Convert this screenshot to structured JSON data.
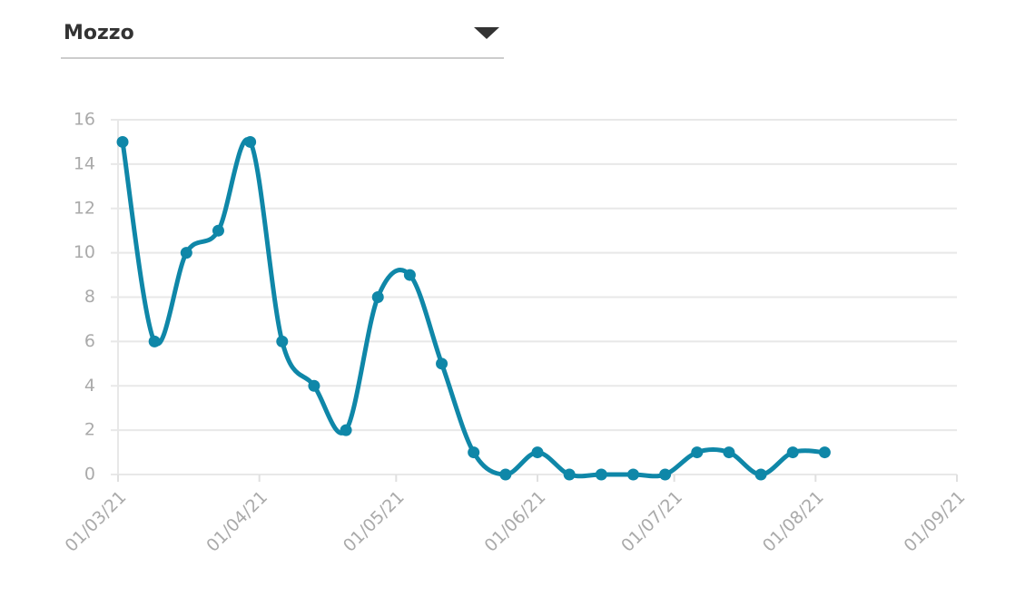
{
  "dropdown": {
    "label": "Mozzo"
  },
  "chart_data": {
    "type": "line",
    "x": [
      "2021-03-02",
      "2021-03-09",
      "2021-03-16",
      "2021-03-23",
      "2021-03-30",
      "2021-04-06",
      "2021-04-13",
      "2021-04-20",
      "2021-04-27",
      "2021-05-04",
      "2021-05-11",
      "2021-05-18",
      "2021-05-25",
      "2021-06-01",
      "2021-06-08",
      "2021-06-15",
      "2021-06-22",
      "2021-06-29",
      "2021-07-06",
      "2021-07-13",
      "2021-07-20",
      "2021-07-27",
      "2021-08-03"
    ],
    "values": [
      15,
      6,
      10,
      11,
      15,
      6,
      4,
      2,
      8,
      9,
      5,
      1,
      0,
      1,
      0,
      0,
      0,
      0,
      1,
      1,
      0,
      1,
      1
    ],
    "color": "#0f87a8",
    "xlim": [
      "2021-03-01",
      "2021-09-01"
    ],
    "xticks": [
      {
        "value": "2021-03-01",
        "label": "01/03/21"
      },
      {
        "value": "2021-04-01",
        "label": "01/04/21"
      },
      {
        "value": "2021-05-01",
        "label": "01/05/21"
      },
      {
        "value": "2021-06-01",
        "label": "01/06/21"
      },
      {
        "value": "2021-07-01",
        "label": "01/07/21"
      },
      {
        "value": "2021-08-01",
        "label": "01/08/21"
      },
      {
        "value": "2021-09-01",
        "label": "01/09/21"
      }
    ],
    "ylim": [
      0,
      16
    ],
    "yticks": [
      0,
      2,
      4,
      6,
      8,
      10,
      12,
      14,
      16
    ],
    "grid": true
  }
}
